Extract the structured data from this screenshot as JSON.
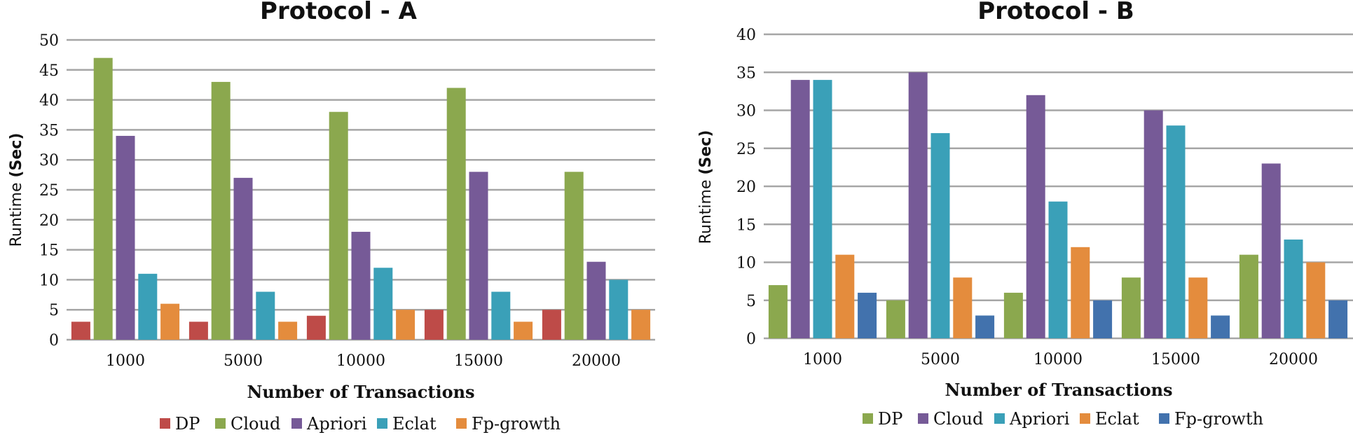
{
  "chart_data": [
    {
      "type": "bar",
      "title": "Protocol - A",
      "xlabel": "Number of Transactions",
      "ylabel_prefix": "Runtime ",
      "ylabel_bold": "(Sec)",
      "categories": [
        "1000",
        "5000",
        "10000",
        "15000",
        "20000"
      ],
      "ylim": [
        0,
        50
      ],
      "yticks": [
        "0",
        "5",
        "10",
        "15",
        "20",
        "25",
        "30",
        "35",
        "40",
        "45",
        "50"
      ],
      "grid": true,
      "legend_position": "bottom",
      "series": [
        {
          "name": "DP",
          "color": "#be4b48",
          "values": [
            3,
            3,
            4,
            5,
            5
          ]
        },
        {
          "name": "Cloud",
          "color": "#8ba84e",
          "values": [
            47,
            43,
            38,
            42,
            28
          ]
        },
        {
          "name": "Apriori",
          "color": "#765a97",
          "values": [
            34,
            27,
            18,
            28,
            13
          ]
        },
        {
          "name": "Eclat",
          "color": "#3aa0b8",
          "values": [
            11,
            8,
            12,
            8,
            10
          ]
        },
        {
          "name": "Fp-growth",
          "color": "#e48c3d",
          "values": [
            6,
            3,
            5,
            3,
            5
          ]
        }
      ]
    },
    {
      "type": "bar",
      "title": "Protocol - B",
      "xlabel": "Number of Transactions",
      "ylabel_prefix": "Runtime ",
      "ylabel_bold": "(Sec)",
      "categories": [
        "1000",
        "5000",
        "10000",
        "15000",
        "20000"
      ],
      "ylim": [
        0,
        40
      ],
      "yticks": [
        "0",
        "5",
        "10",
        "15",
        "20",
        "25",
        "30",
        "35",
        "40"
      ],
      "grid": true,
      "legend_position": "bottom",
      "series": [
        {
          "name": "DP",
          "color": "#8ba84e",
          "values": [
            7,
            5,
            6,
            8,
            11
          ]
        },
        {
          "name": "Cloud",
          "color": "#765a97",
          "values": [
            34,
            35,
            32,
            30,
            23
          ]
        },
        {
          "name": "Apriori",
          "color": "#3aa0b8",
          "values": [
            34,
            27,
            18,
            28,
            13
          ]
        },
        {
          "name": "Eclat",
          "color": "#e48c3d",
          "values": [
            11,
            8,
            12,
            8,
            10
          ]
        },
        {
          "name": "Fp-growth",
          "color": "#4272ad",
          "values": [
            6,
            3,
            5,
            3,
            5
          ]
        }
      ]
    }
  ]
}
